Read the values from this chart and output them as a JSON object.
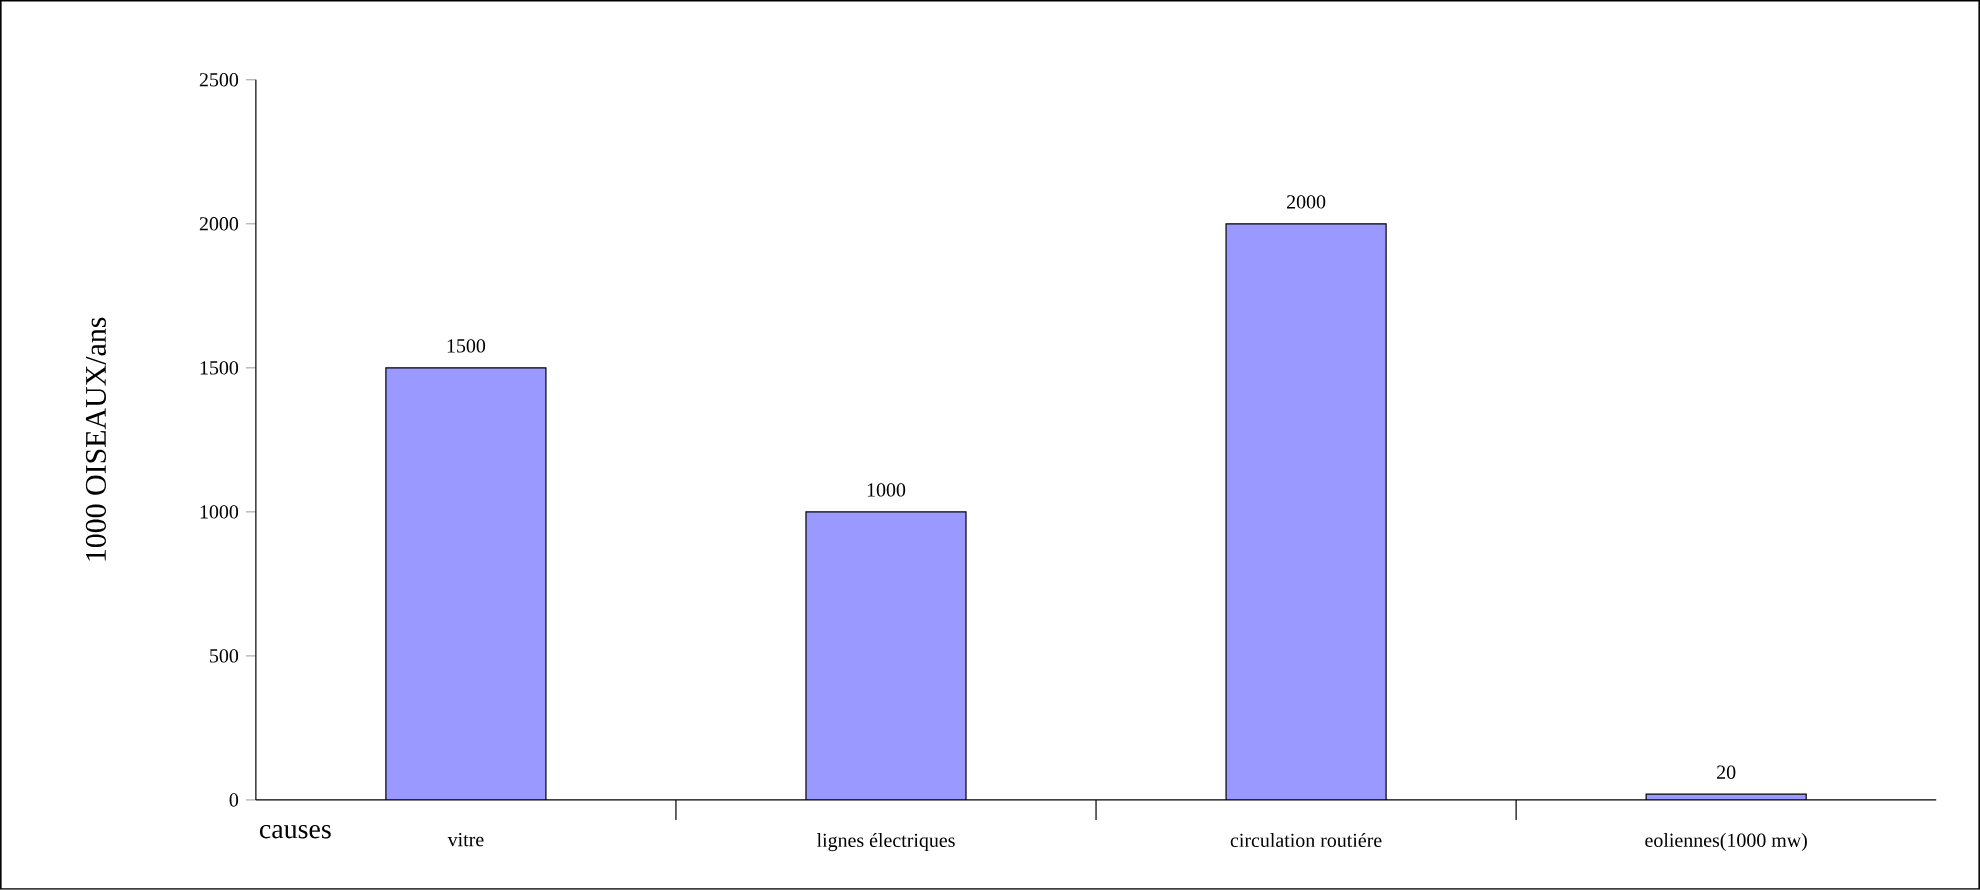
{
  "chart_data": {
    "type": "bar",
    "ylabel": "1000 OISEAUX/ans",
    "xlabel": "causes",
    "categories": [
      "vitre",
      "lignes électriques",
      "circulation routiére",
      "eoliennes(1000 mw)"
    ],
    "values": [
      1500,
      1000,
      2000,
      20
    ],
    "color": "#9999ff",
    "ylim": [
      0,
      2500
    ],
    "yticks": [
      0,
      500,
      1000,
      1500,
      2000,
      2500
    ],
    "data_labels": true,
    "grid": false
  }
}
